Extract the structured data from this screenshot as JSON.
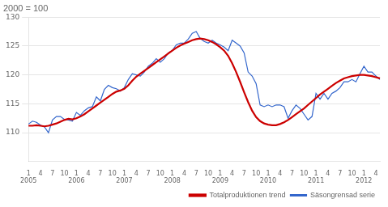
{
  "chart_data": {
    "type": "line",
    "title": "2000 = 100",
    "categories": [
      "1\n2005",
      null,
      null,
      "4",
      null,
      null,
      "7",
      null,
      null,
      "10",
      null,
      null,
      "1\n2006",
      null,
      null,
      "4",
      null,
      null,
      "7",
      null,
      null,
      "10",
      null,
      null,
      "1\n2007",
      null,
      null,
      "4",
      null,
      null,
      "7",
      null,
      null,
      "10",
      null,
      null,
      "1\n2008",
      null,
      null,
      "4",
      null,
      null,
      "7",
      null,
      null,
      "10",
      null,
      null,
      "1\n2009",
      null,
      null,
      "4",
      null,
      null,
      "7",
      null,
      null,
      "10",
      null,
      null,
      "1\n2010",
      null,
      null,
      "4",
      null,
      null,
      "7",
      null,
      null,
      "10",
      null,
      null,
      "1\n2011",
      null,
      null,
      "4",
      null,
      null,
      "7",
      null,
      null,
      "10",
      null,
      null,
      "1\n2012",
      null,
      null,
      "4",
      null
    ],
    "series": [
      {
        "name": "Totalproduktionen trend",
        "color": "#cc0000",
        "values": [
          111.2,
          111.2,
          111.3,
          111.2,
          111.1,
          111.2,
          111.4,
          111.6,
          111.9,
          112.2,
          112.4,
          112.3,
          112.5,
          112.8,
          113.2,
          113.7,
          114.2,
          114.7,
          115.2,
          115.7,
          116.2,
          116.7,
          117.1,
          117.3,
          117.6,
          118.2,
          119.0,
          119.7,
          120.2,
          120.7,
          121.2,
          121.7,
          122.2,
          122.7,
          123.2,
          123.7,
          124.2,
          124.7,
          125.1,
          125.4,
          125.7,
          126.0,
          126.2,
          126.3,
          126.2,
          126.0,
          125.7,
          125.3,
          124.8,
          124.2,
          123.3,
          122.0,
          120.5,
          118.8,
          117.0,
          115.3,
          113.8,
          112.7,
          112.0,
          111.6,
          111.4,
          111.3,
          111.3,
          111.5,
          111.8,
          112.2,
          112.7,
          113.2,
          113.7,
          114.2,
          114.8,
          115.4,
          116.0,
          116.6,
          117.1,
          117.6,
          118.1,
          118.6,
          119.0,
          119.4,
          119.6,
          119.8,
          119.9,
          120.0,
          120.0,
          119.9,
          119.8,
          119.6,
          119.4
        ]
      },
      {
        "name": "Säsongrensad serie",
        "color": "#3366cc",
        "values": [
          111.5,
          112.0,
          111.8,
          111.3,
          111.0,
          110.0,
          112.2,
          112.8,
          112.8,
          112.3,
          112.2,
          112.0,
          113.5,
          113.0,
          113.8,
          114.3,
          114.5,
          116.2,
          115.5,
          117.5,
          118.2,
          117.8,
          117.6,
          117.2,
          117.8,
          119.2,
          120.2,
          120.0,
          119.8,
          120.5,
          121.5,
          122.0,
          122.8,
          122.2,
          122.8,
          123.8,
          124.2,
          125.2,
          125.5,
          125.5,
          126.2,
          127.2,
          127.5,
          126.3,
          125.8,
          125.5,
          126.0,
          125.5,
          125.2,
          124.8,
          124.2,
          126.0,
          125.5,
          125.0,
          123.8,
          120.5,
          119.8,
          118.5,
          114.8,
          114.5,
          114.8,
          114.5,
          114.8,
          114.8,
          114.5,
          112.5,
          113.8,
          114.8,
          114.2,
          113.2,
          112.2,
          112.8,
          116.8,
          115.8,
          116.8,
          115.8,
          116.8,
          117.2,
          117.8,
          118.8,
          118.8,
          119.2,
          118.8,
          120.2,
          121.5,
          120.5,
          120.5,
          119.8,
          119.2
        ]
      }
    ],
    "ylim": [
      105,
      130
    ],
    "yticks": [
      110,
      115,
      120,
      125,
      130
    ],
    "grid": true,
    "legend": "lower right"
  }
}
